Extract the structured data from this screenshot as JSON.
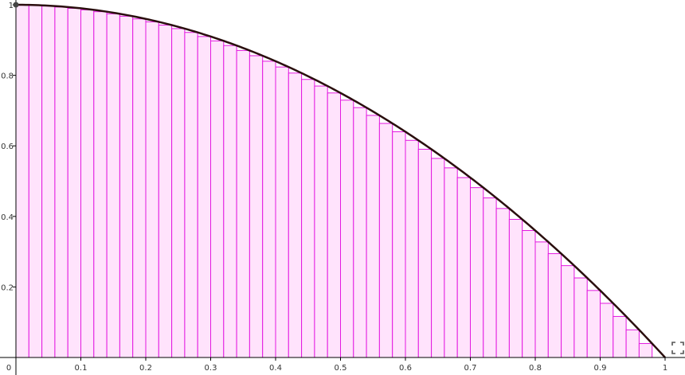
{
  "chart_data": {
    "type": "bar",
    "title": "",
    "xlabel": "",
    "ylabel": "",
    "xlim": [
      0,
      1
    ],
    "ylim": [
      0,
      1
    ],
    "grid": false,
    "function": "1 - x^2",
    "partition_count": 50,
    "riemann_sum": "right",
    "x_ticks": [
      "0",
      "0.1",
      "0.2",
      "0.3",
      "0.4",
      "0.5",
      "0.6",
      "0.7",
      "0.8",
      "0.9",
      "1"
    ],
    "y_ticks": [
      "0.2",
      "0.4",
      "0.6",
      "0.8",
      "1"
    ]
  },
  "colors": {
    "bar_fill": "#ffe3fc",
    "bar_stroke": "#e318e0",
    "curve": "#2a0e0e",
    "axis": "#000000"
  },
  "controls": {
    "fullscreen_icon": "fullscreen-icon"
  }
}
